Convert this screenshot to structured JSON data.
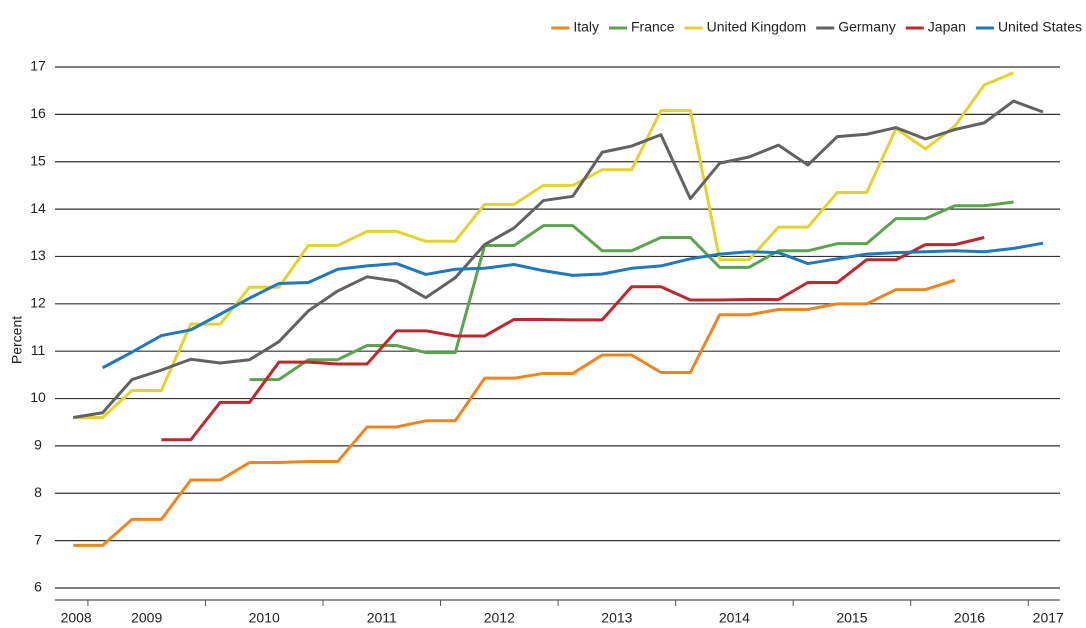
{
  "chart_data": {
    "type": "line",
    "y_label": "Percent",
    "x": [
      2008.875,
      2009.125,
      2009.375,
      2009.625,
      2009.875,
      2010.125,
      2010.375,
      2010.625,
      2010.875,
      2011.125,
      2011.375,
      2011.625,
      2011.875,
      2012.125,
      2012.375,
      2012.625,
      2012.875,
      2013.125,
      2013.375,
      2013.625,
      2013.875,
      2014.125,
      2014.375,
      2014.625,
      2014.875,
      2015.125,
      2015.375,
      2015.625,
      2015.875,
      2016.125,
      2016.375,
      2016.625,
      2016.875,
      2017.125
    ],
    "series": [
      {
        "name": "Italy",
        "color": "#f0851c",
        "values": [
          6.9,
          6.9,
          7.45,
          7.45,
          8.28,
          8.28,
          8.65,
          8.65,
          8.67,
          8.67,
          9.4,
          9.4,
          9.53,
          9.53,
          10.43,
          10.43,
          10.53,
          10.53,
          10.92,
          10.92,
          10.55,
          10.55,
          11.77,
          11.77,
          11.88,
          11.88,
          12.0,
          12.0,
          12.3,
          12.3,
          12.5,
          null,
          null,
          null
        ]
      },
      {
        "name": "France",
        "color": "#5aa54b",
        "values": [
          null,
          null,
          null,
          null,
          null,
          null,
          10.4,
          10.4,
          10.82,
          10.82,
          11.12,
          11.12,
          10.97,
          10.97,
          13.23,
          13.23,
          13.65,
          13.65,
          13.12,
          13.12,
          13.4,
          13.4,
          12.77,
          12.77,
          13.12,
          13.12,
          13.27,
          13.27,
          13.8,
          13.8,
          14.07,
          14.07,
          14.15,
          null
        ]
      },
      {
        "name": "United Kingdom",
        "color": "#e3d32a",
        "values": [
          9.6,
          9.6,
          10.17,
          10.17,
          11.57,
          11.57,
          12.35,
          12.35,
          13.23,
          13.23,
          13.53,
          13.53,
          13.32,
          13.32,
          14.1,
          14.1,
          14.5,
          14.5,
          14.83,
          14.83,
          16.08,
          16.08,
          12.93,
          12.93,
          13.62,
          13.62,
          14.35,
          14.35,
          15.7,
          15.27,
          15.75,
          16.62,
          16.88,
          null
        ]
      },
      {
        "name": "Germany",
        "color": "#626262",
        "values": [
          9.6,
          9.7,
          10.4,
          10.6,
          10.83,
          10.75,
          10.82,
          11.2,
          11.85,
          12.27,
          12.57,
          12.48,
          12.13,
          12.55,
          13.25,
          13.6,
          14.18,
          14.27,
          15.2,
          15.33,
          15.57,
          14.22,
          14.97,
          15.1,
          15.35,
          14.93,
          15.53,
          15.58,
          15.72,
          15.48,
          15.68,
          15.82,
          16.28,
          16.05
        ]
      },
      {
        "name": "Japan",
        "color": "#c0272d",
        "values": [
          null,
          null,
          null,
          9.13,
          9.13,
          9.92,
          9.92,
          10.77,
          10.77,
          10.73,
          10.73,
          11.43,
          11.43,
          11.32,
          11.32,
          11.67,
          11.67,
          11.66,
          11.66,
          12.36,
          12.36,
          12.08,
          12.08,
          12.09,
          12.09,
          12.45,
          12.45,
          12.93,
          12.93,
          13.25,
          13.25,
          13.4,
          null,
          null
        ]
      },
      {
        "name": "United States",
        "color": "#1f78c1",
        "values": [
          null,
          10.65,
          10.98,
          11.33,
          11.45,
          11.78,
          12.12,
          12.43,
          12.45,
          12.73,
          12.8,
          12.85,
          12.62,
          12.73,
          12.75,
          12.83,
          12.7,
          12.6,
          12.63,
          12.75,
          12.8,
          12.95,
          13.05,
          13.1,
          13.08,
          12.85,
          12.95,
          13.05,
          13.08,
          13.1,
          13.12,
          13.1,
          13.17,
          13.28
        ]
      }
    ],
    "xlim": [
      2008.72,
      2017.27
    ],
    "xticks": [
      {
        "value": 2008.9,
        "label": "2008"
      },
      {
        "value": 2009.5,
        "label": "2009"
      },
      {
        "value": 2010.5,
        "label": "2010"
      },
      {
        "value": 2011.5,
        "label": "2011"
      },
      {
        "value": 2012.5,
        "label": "2012"
      },
      {
        "value": 2013.5,
        "label": "2013"
      },
      {
        "value": 2014.5,
        "label": "2014"
      },
      {
        "value": 2015.5,
        "label": "2015"
      },
      {
        "value": 2016.5,
        "label": "2016"
      },
      {
        "value": 2017.17,
        "label": "2017"
      }
    ],
    "xtick_marks": [
      2009,
      2010,
      2011,
      2012,
      2013,
      2014,
      2015,
      2016,
      2017
    ],
    "ylim": [
      6,
      17
    ],
    "yticks": [
      6,
      7,
      8,
      9,
      10,
      11,
      12,
      13,
      14,
      15,
      16,
      17
    ],
    "grid": true,
    "legend": "top-right"
  }
}
